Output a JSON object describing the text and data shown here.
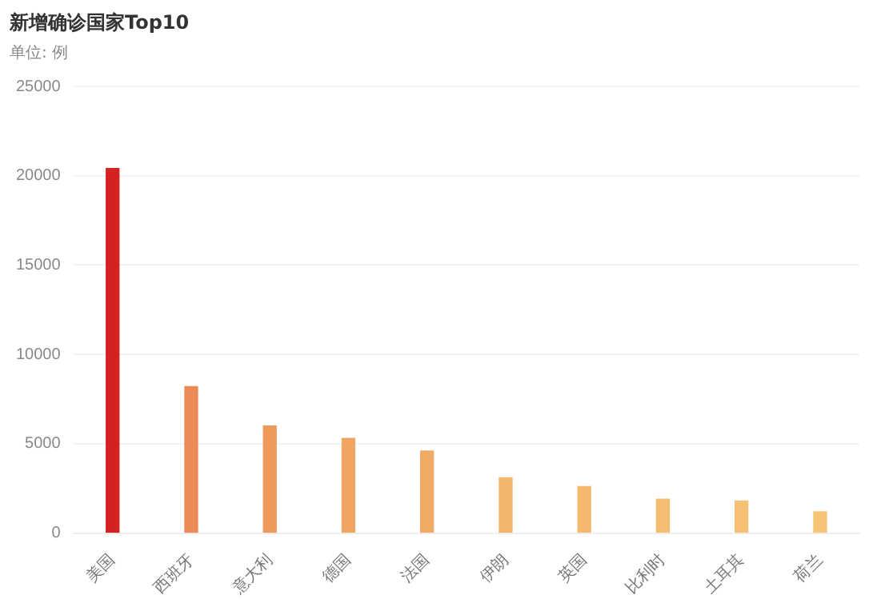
{
  "chart_data": {
    "type": "bar",
    "title": "新增确诊国家Top10",
    "subtitle": "单位: 例",
    "categories": [
      "美国",
      "西班牙",
      "意大利",
      "德国",
      "法国",
      "伊朗",
      "英国",
      "比利时",
      "土耳其",
      "荷兰"
    ],
    "values": [
      20400,
      8200,
      6000,
      5300,
      4600,
      3100,
      2600,
      1900,
      1800,
      1200
    ],
    "colors": [
      "#d42222",
      "#ec8a55",
      "#ee9a5c",
      "#f0a562",
      "#f1aa65",
      "#f3b46c",
      "#f4b96f",
      "#f5bd72",
      "#f5c074",
      "#f6c477"
    ],
    "ylim": [
      0,
      25000
    ],
    "yticks": [
      0,
      5000,
      10000,
      15000,
      20000,
      25000
    ],
    "grid": "y",
    "legend": false
  }
}
